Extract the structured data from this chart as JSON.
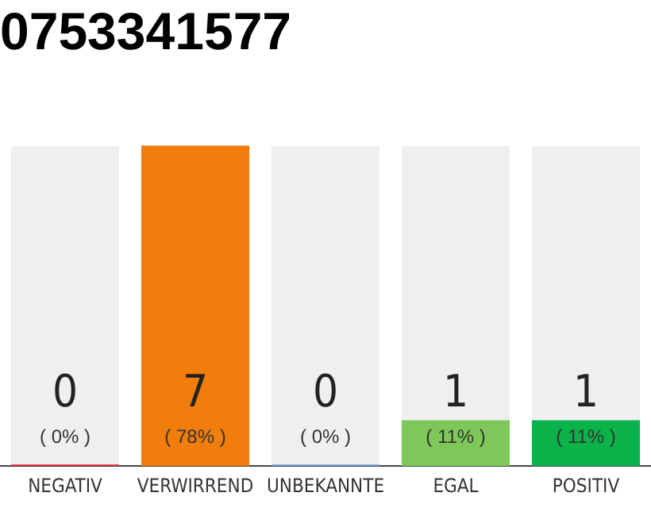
{
  "chart_data": {
    "type": "bar",
    "title": "0753341577",
    "categories": [
      "NEGATIV",
      "VERWIRREND",
      "UNBEKANNTE",
      "EGAL",
      "POSITIV"
    ],
    "values": [
      0,
      7,
      0,
      1,
      1
    ],
    "colors": [
      "#e8213a",
      "#f07d0c",
      "#6f9be0",
      "#7ec85a",
      "#0ab24a"
    ],
    "data_labels": true,
    "ylim": [
      0,
      7
    ],
    "tick_labels": "x",
    "grid": false,
    "legend": false,
    "annotations": [
      "( 0% )",
      "( 78% )",
      "( 0% )",
      "( 11% )",
      "( 11% )"
    ]
  }
}
